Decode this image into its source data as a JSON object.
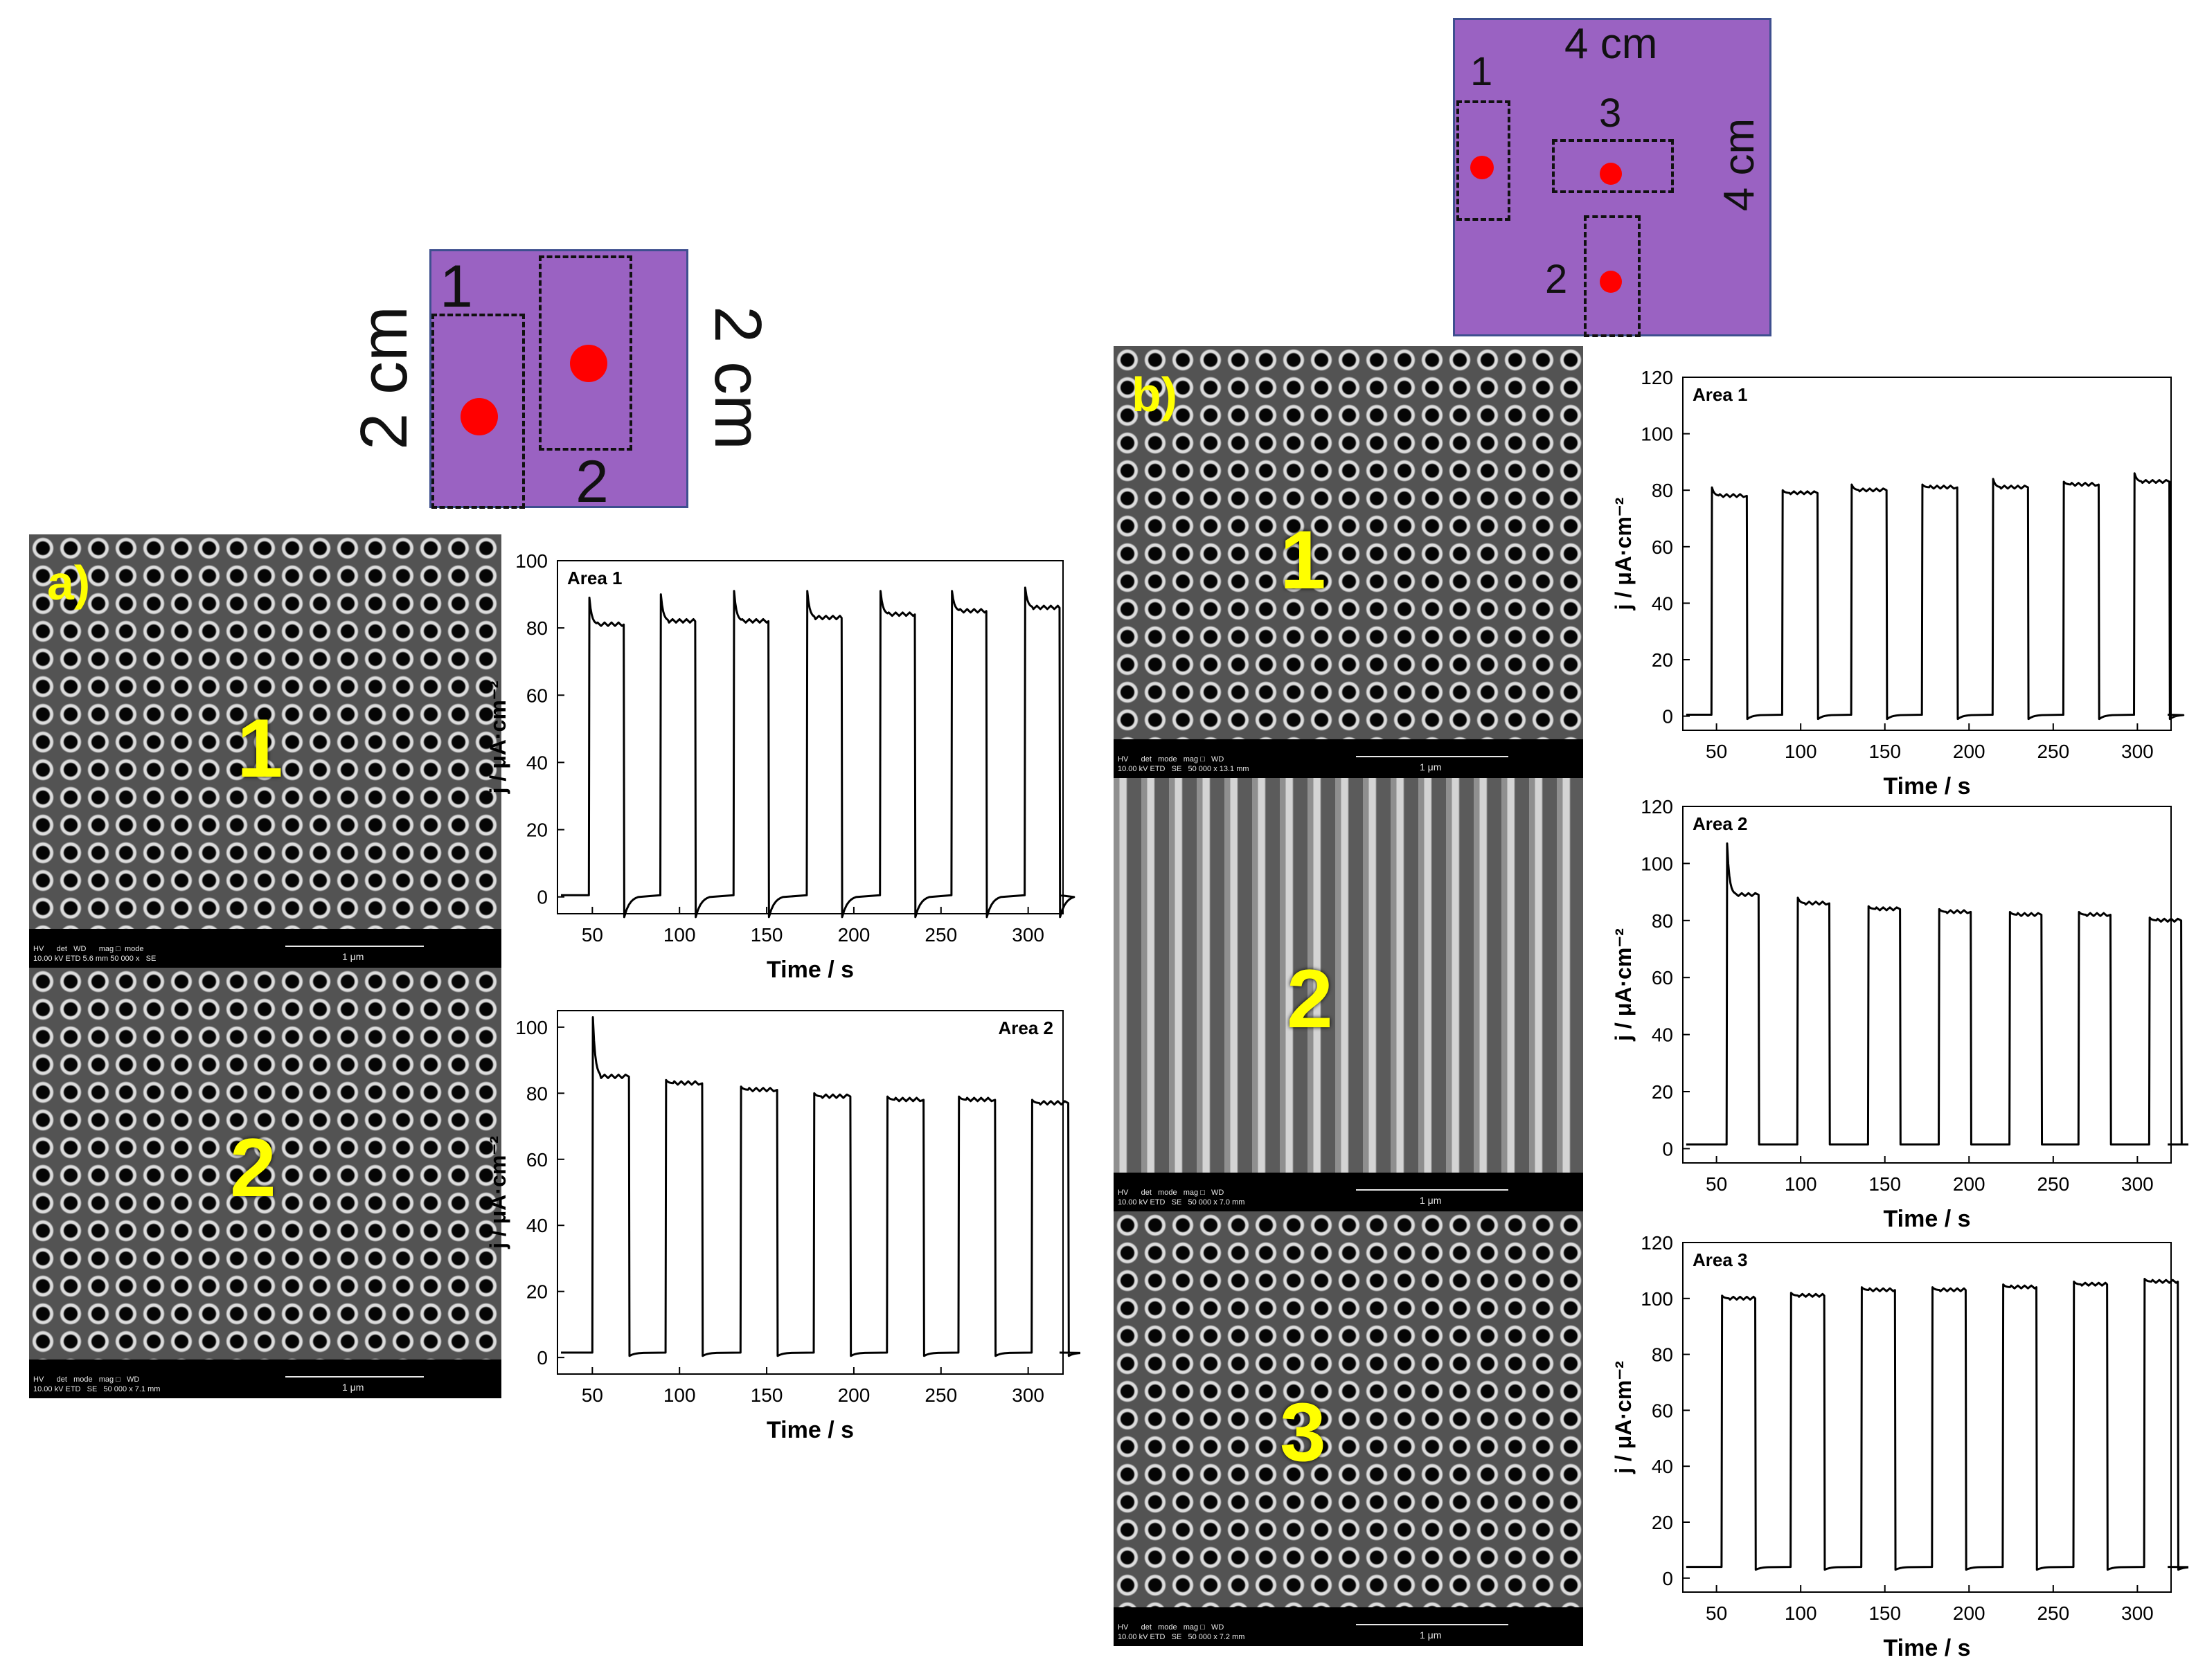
{
  "diagram_a": {
    "side_left": "2 cm",
    "side_right": "2 cm",
    "zone1": "1",
    "zone2": "2"
  },
  "diagram_b": {
    "side_top": "4 cm",
    "side_right": "4 cm",
    "zone1": "1",
    "zone2": "2",
    "zone3": "3"
  },
  "panel_a": {
    "letter": "a)",
    "sem1": {
      "number": "1",
      "info_top": "HV      det   WD      mag □  mode",
      "info_bottom": "10.00 kV ETD 5.6 mm 50 000 x   SE",
      "scale": "1 μm"
    },
    "sem2": {
      "number": "2",
      "info_top": "HV      det   mode   mag □   WD",
      "info_bottom": "10.00 kV ETD   SE   50 000 x 7.1 mm",
      "scale": "1 μm"
    }
  },
  "panel_b": {
    "letter": "b)",
    "sem1": {
      "number": "1",
      "info_top": "HV      det   mode   mag □   WD",
      "info_bottom": "10.00 kV ETD   SE   50 000 x 13.1 mm",
      "scale": "1 μm"
    },
    "sem2": {
      "number": "2",
      "info_top": "HV      det   mode   mag □   WD",
      "info_bottom": "10.00 kV ETD   SE   50 000 x 7.0 mm",
      "scale": "1 μm"
    },
    "sem3": {
      "number": "3",
      "info_top": "HV      det   mode   mag □   WD",
      "info_bottom": "10.00 kV ETD   SE   50 000 x 7.2 mm",
      "scale": "1 μm"
    }
  },
  "chart_data": [
    {
      "id": "a1",
      "type": "line",
      "title": "Area 1",
      "xlabel": "Time / s",
      "ylabel": "j / μA·cm⁻²",
      "xlim": [
        30,
        320
      ],
      "ylim": [
        -5,
        100
      ],
      "xticks": [
        50,
        100,
        150,
        200,
        250,
        300
      ],
      "yticks": [
        0,
        20,
        40,
        60,
        80,
        100
      ],
      "on_times": [
        48,
        89,
        131,
        173,
        215,
        256,
        298
      ],
      "on_duration": 20,
      "plateau": [
        81,
        82,
        82,
        83,
        84,
        85,
        86
      ],
      "peak": [
        89,
        90,
        91,
        91,
        91,
        91,
        92
      ],
      "dark": 0.5,
      "undershoot": -6,
      "series_color": "#000000"
    },
    {
      "id": "a2",
      "type": "line",
      "title": "Area 2",
      "xlabel": "Time / s",
      "ylabel": "j / μA·cm⁻²",
      "xlim": [
        30,
        320
      ],
      "ylim": [
        -5,
        105
      ],
      "xticks": [
        50,
        100,
        150,
        200,
        250,
        300
      ],
      "yticks": [
        0,
        20,
        40,
        60,
        80,
        100
      ],
      "on_times": [
        50,
        92,
        135,
        177,
        219,
        260,
        302
      ],
      "on_duration": 21,
      "plateau": [
        85,
        83,
        81,
        79,
        78,
        78,
        77
      ],
      "peak": [
        103,
        84,
        82,
        80,
        79,
        79,
        78
      ],
      "dark": 1.5,
      "undershoot": 0.5,
      "series_color": "#000000"
    },
    {
      "id": "b1",
      "type": "line",
      "title": "Area 1",
      "xlabel": "Time / s",
      "ylabel": "j / μA·cm⁻²",
      "xlim": [
        30,
        320
      ],
      "ylim": [
        -5,
        120
      ],
      "xticks": [
        50,
        100,
        150,
        200,
        250,
        300
      ],
      "yticks": [
        0,
        20,
        40,
        60,
        80,
        100,
        120
      ],
      "on_times": [
        47,
        89,
        130,
        172,
        214,
        256,
        298
      ],
      "on_duration": 21,
      "plateau": [
        78,
        79,
        80,
        81,
        81,
        82,
        83
      ],
      "peak": [
        81,
        80,
        82,
        82,
        84,
        83,
        86
      ],
      "dark": 0.5,
      "undershoot": -1,
      "series_color": "#000000"
    },
    {
      "id": "b2",
      "type": "line",
      "title": "Area 2",
      "xlabel": "Time / s",
      "ylabel": "j / μA·cm⁻²",
      "xlim": [
        30,
        320
      ],
      "ylim": [
        -5,
        120
      ],
      "xticks": [
        50,
        100,
        150,
        200,
        250,
        300
      ],
      "yticks": [
        0,
        20,
        40,
        60,
        80,
        100,
        120
      ],
      "on_times": [
        56,
        98,
        140,
        182,
        224,
        265,
        307
      ],
      "on_duration": 19,
      "plateau": [
        89,
        86,
        84,
        83,
        82,
        82,
        80
      ],
      "peak": [
        107,
        88,
        85,
        84,
        83,
        83,
        81
      ],
      "dark": 1.5,
      "undershoot": 1.5,
      "series_color": "#000000"
    },
    {
      "id": "b3",
      "type": "line",
      "title": "Area 3",
      "xlabel": "Time / s",
      "ylabel": "j / μA·cm⁻²",
      "xlim": [
        30,
        320
      ],
      "ylim": [
        -5,
        120
      ],
      "xticks": [
        50,
        100,
        150,
        200,
        250,
        300
      ],
      "yticks": [
        0,
        20,
        40,
        60,
        80,
        100,
        120
      ],
      "on_times": [
        53,
        94,
        136,
        178,
        220,
        262,
        304
      ],
      "on_duration": 20,
      "plateau": [
        100,
        101,
        103,
        103,
        104,
        105,
        106
      ],
      "peak": [
        101,
        102,
        104,
        104,
        105,
        106,
        107
      ],
      "dark": 4,
      "undershoot": 3,
      "series_color": "#000000"
    }
  ]
}
